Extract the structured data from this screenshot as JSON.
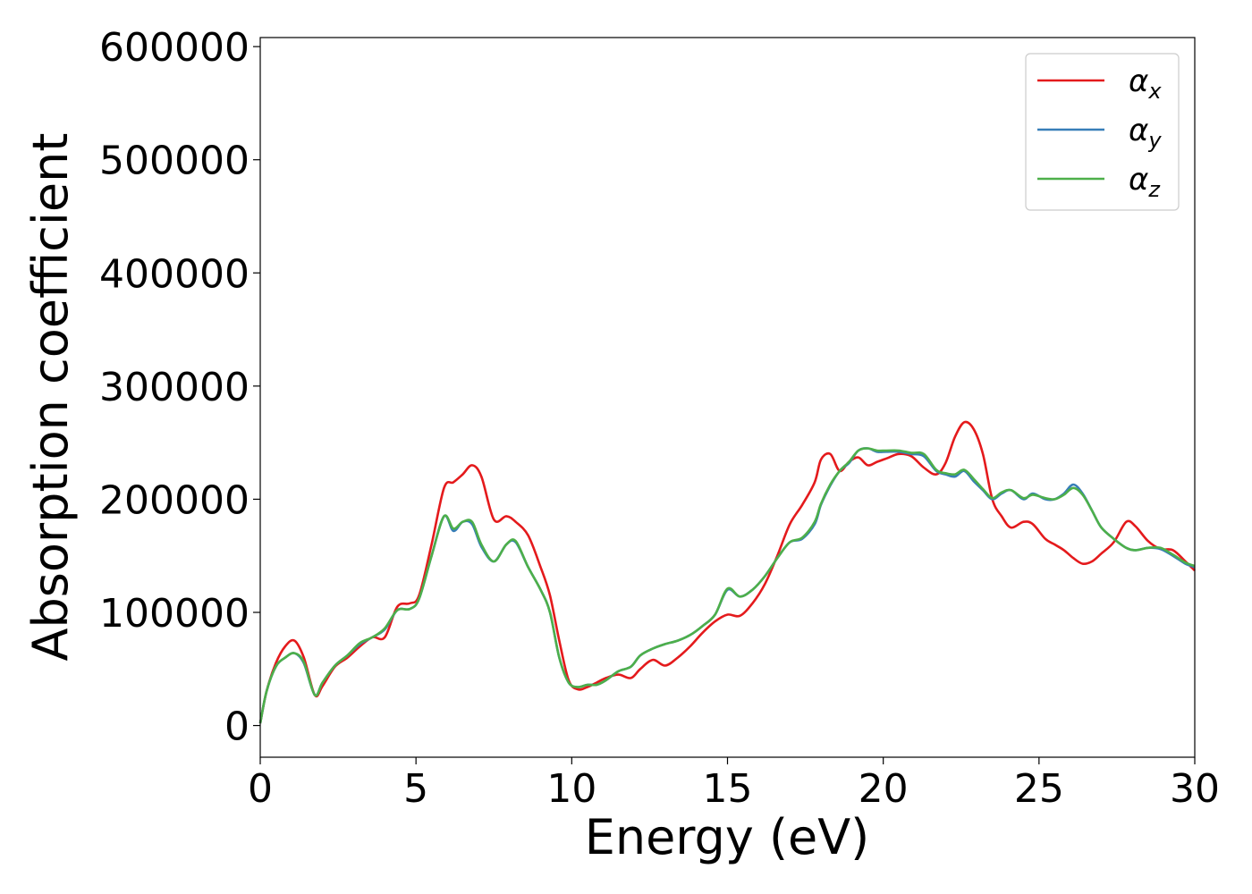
{
  "chart_data": {
    "type": "line",
    "xlabel": "Energy (eV)",
    "ylabel": "Absorption coefficient",
    "xlim": [
      0,
      30
    ],
    "ylim": [
      -28000,
      608000
    ],
    "xticks": [
      0,
      5,
      10,
      15,
      20,
      25,
      30
    ],
    "yticks": [
      0,
      100000,
      200000,
      300000,
      400000,
      500000,
      600000
    ],
    "grid": false,
    "legend_position": "top-right",
    "series": [
      {
        "name": "αx",
        "legend_symbol": "α",
        "legend_subscript": "x",
        "color": "#e41a1c",
        "x": [
          0,
          0.2,
          0.5,
          0.8,
          1.1,
          1.4,
          1.75,
          2.0,
          2.4,
          2.8,
          3.2,
          3.6,
          4.0,
          4.4,
          4.8,
          5.1,
          5.5,
          5.9,
          6.2,
          6.5,
          6.8,
          7.1,
          7.5,
          7.9,
          8.2,
          8.6,
          9.0,
          9.3,
          9.6,
          9.9,
          10.2,
          10.5,
          10.8,
          11.1,
          11.5,
          11.9,
          12.2,
          12.6,
          13.0,
          13.4,
          13.8,
          14.2,
          14.6,
          15.0,
          15.4,
          15.8,
          16.2,
          16.6,
          17.0,
          17.4,
          17.8,
          18.0,
          18.3,
          18.6,
          18.9,
          19.2,
          19.5,
          19.8,
          20.1,
          20.5,
          20.9,
          21.3,
          21.7,
          22.0,
          22.3,
          22.6,
          22.9,
          23.2,
          23.5,
          23.8,
          24.1,
          24.5,
          24.8,
          25.2,
          25.5,
          25.8,
          26.1,
          26.4,
          26.7,
          27.0,
          27.4,
          27.8,
          28.1,
          28.5,
          28.9,
          29.3,
          29.7,
          30.0
        ],
        "y": [
          2000,
          30000,
          55000,
          70000,
          75000,
          60000,
          27000,
          35000,
          52000,
          60000,
          70000,
          78000,
          78000,
          105000,
          108000,
          115000,
          160000,
          210000,
          215000,
          222000,
          230000,
          220000,
          182000,
          185000,
          180000,
          168000,
          140000,
          115000,
          75000,
          40000,
          32000,
          34000,
          38000,
          42000,
          45000,
          42000,
          50000,
          58000,
          53000,
          60000,
          70000,
          82000,
          92000,
          98000,
          97000,
          108000,
          125000,
          150000,
          178000,
          195000,
          215000,
          235000,
          240000,
          225000,
          233000,
          237000,
          230000,
          233000,
          236000,
          240000,
          238000,
          228000,
          222000,
          232000,
          255000,
          268000,
          262000,
          240000,
          200000,
          185000,
          175000,
          180000,
          178000,
          165000,
          160000,
          155000,
          148000,
          143000,
          145000,
          152000,
          162000,
          180000,
          176000,
          163000,
          156000,
          155000,
          145000,
          137000
        ]
      },
      {
        "name": "αy",
        "legend_symbol": "α",
        "legend_subscript": "y",
        "color": "#377eb8",
        "x": [
          0,
          0.2,
          0.5,
          0.8,
          1.1,
          1.4,
          1.75,
          2.0,
          2.4,
          2.8,
          3.2,
          3.6,
          4.0,
          4.4,
          4.8,
          5.1,
          5.5,
          5.9,
          6.2,
          6.5,
          6.8,
          7.1,
          7.5,
          7.9,
          8.2,
          8.6,
          9.0,
          9.3,
          9.6,
          9.9,
          10.2,
          10.5,
          10.8,
          11.1,
          11.5,
          11.9,
          12.2,
          12.6,
          13.0,
          13.4,
          13.8,
          14.2,
          14.6,
          15.0,
          15.4,
          15.8,
          16.2,
          16.6,
          17.0,
          17.4,
          17.8,
          18.0,
          18.3,
          18.6,
          18.9,
          19.2,
          19.5,
          19.8,
          20.1,
          20.5,
          20.9,
          21.3,
          21.7,
          22.0,
          22.3,
          22.6,
          22.9,
          23.2,
          23.5,
          23.8,
          24.1,
          24.5,
          24.8,
          25.2,
          25.5,
          25.8,
          26.1,
          26.4,
          26.7,
          27.0,
          27.4,
          27.8,
          28.1,
          28.5,
          28.9,
          29.3,
          29.7,
          30.0
        ],
        "y": [
          2000,
          30000,
          52000,
          60000,
          64000,
          55000,
          27000,
          38000,
          53000,
          62000,
          72000,
          78000,
          85000,
          102000,
          103000,
          112000,
          150000,
          185000,
          172000,
          180000,
          178000,
          158000,
          145000,
          160000,
          162000,
          140000,
          120000,
          100000,
          60000,
          38000,
          34000,
          36000,
          36000,
          40000,
          48000,
          52000,
          62000,
          68000,
          72000,
          75000,
          80000,
          88000,
          98000,
          120000,
          114000,
          120000,
          132000,
          148000,
          162000,
          165000,
          178000,
          195000,
          212000,
          225000,
          232000,
          243000,
          245000,
          242000,
          242000,
          242000,
          240000,
          238000,
          225000,
          222000,
          220000,
          225000,
          216000,
          208000,
          200000,
          205000,
          208000,
          200000,
          205000,
          200000,
          200000,
          205000,
          213000,
          205000,
          190000,
          175000,
          165000,
          157000,
          155000,
          157000,
          156000,
          150000,
          143000,
          140000
        ]
      },
      {
        "name": "αz",
        "legend_symbol": "α",
        "legend_subscript": "z",
        "color": "#4daf4a",
        "x": [
          0,
          0.2,
          0.5,
          0.8,
          1.1,
          1.4,
          1.75,
          2.0,
          2.4,
          2.8,
          3.2,
          3.6,
          4.0,
          4.4,
          4.8,
          5.1,
          5.5,
          5.9,
          6.2,
          6.5,
          6.8,
          7.1,
          7.5,
          7.9,
          8.2,
          8.6,
          9.0,
          9.3,
          9.6,
          9.9,
          10.2,
          10.5,
          10.8,
          11.1,
          11.5,
          11.9,
          12.2,
          12.6,
          13.0,
          13.4,
          13.8,
          14.2,
          14.6,
          15.0,
          15.4,
          15.8,
          16.2,
          16.6,
          17.0,
          17.4,
          17.8,
          18.0,
          18.3,
          18.6,
          18.9,
          19.2,
          19.5,
          19.8,
          20.1,
          20.5,
          20.9,
          21.3,
          21.7,
          22.0,
          22.3,
          22.6,
          22.9,
          23.2,
          23.5,
          23.8,
          24.1,
          24.5,
          24.8,
          25.2,
          25.5,
          25.8,
          26.1,
          26.4,
          26.7,
          27.0,
          27.4,
          27.8,
          28.1,
          28.5,
          28.9,
          29.3,
          29.7,
          30.0
        ],
        "y": [
          2000,
          30000,
          52000,
          60000,
          64000,
          56000,
          27000,
          38000,
          53000,
          62000,
          73000,
          78000,
          86000,
          102000,
          103000,
          112000,
          150000,
          185000,
          174000,
          180000,
          180000,
          160000,
          145000,
          160000,
          163000,
          140000,
          120000,
          100000,
          60000,
          38000,
          34000,
          36000,
          36000,
          40000,
          48000,
          52000,
          62000,
          68000,
          72000,
          75000,
          80000,
          88000,
          98000,
          121000,
          114000,
          120000,
          132000,
          148000,
          162000,
          166000,
          180000,
          196000,
          213000,
          225000,
          233000,
          243000,
          245000,
          243000,
          243000,
          243000,
          241000,
          240000,
          226000,
          223000,
          222000,
          226000,
          218000,
          209000,
          201000,
          206000,
          208000,
          201000,
          204000,
          201000,
          200000,
          204000,
          210000,
          204000,
          190000,
          175000,
          165000,
          157000,
          155000,
          157000,
          157000,
          151000,
          144000,
          141000
        ]
      }
    ]
  }
}
